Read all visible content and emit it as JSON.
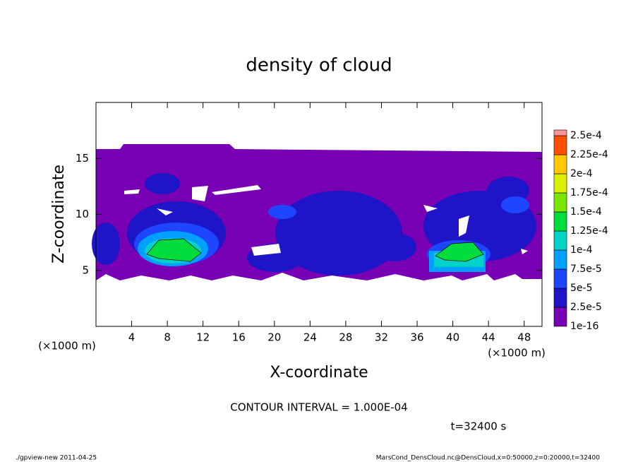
{
  "chart_data": {
    "type": "contour",
    "title": "density of cloud",
    "xlabel": "X-coordinate",
    "ylabel": "Z-coordinate",
    "axis_unit": "(×1000 m)",
    "xlim": [
      0,
      50
    ],
    "xticks": [
      4,
      8,
      12,
      16,
      20,
      24,
      28,
      32,
      36,
      40,
      44,
      48
    ],
    "ylim": [
      0,
      20
    ],
    "yticks": [
      5,
      10,
      15
    ],
    "levels": [
      {
        "value": 1e-16,
        "label": "1e-16"
      },
      {
        "value": 2.5e-05,
        "label": "2.5e-5"
      },
      {
        "value": 5e-05,
        "label": "5e-5"
      },
      {
        "value": 7.5e-05,
        "label": "7.5e-5"
      },
      {
        "value": 0.0001,
        "label": "1e-4"
      },
      {
        "value": 0.000125,
        "label": "1.25e-4"
      },
      {
        "value": 0.00015,
        "label": "1.5e-4"
      },
      {
        "value": 0.000175,
        "label": "1.75e-4"
      },
      {
        "value": 0.0002,
        "label": "2e-4"
      },
      {
        "value": 0.000225,
        "label": "2.25e-4"
      },
      {
        "value": 0.00025,
        "label": "2.5e-4"
      }
    ],
    "level_colors": [
      "#7800b4",
      "#1e14c8",
      "#1e46ff",
      "#00a0ff",
      "#00d2c8",
      "#00dc3c",
      "#78e600",
      "#dcf000",
      "#ffc800",
      "#ff5000",
      "#ff9696"
    ],
    "contour_interval": "CONTOUR INTERVAL = 1.000E-04",
    "time": "t=32400 s",
    "footer_left": "./gpview-new   2011-04-25",
    "footer_right": "MarsCond_DensCloud.nc@DensCloud,x=0:50000,z=0:20000,t=32400"
  }
}
